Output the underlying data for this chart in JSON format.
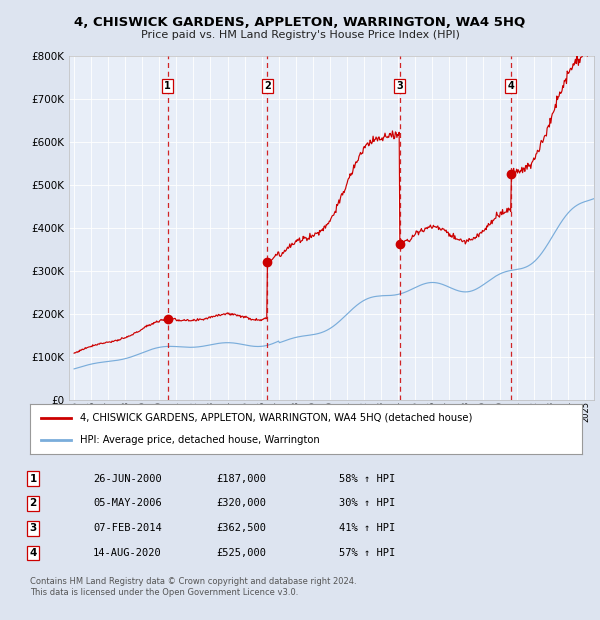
{
  "title1": "4, CHISWICK GARDENS, APPLETON, WARRINGTON, WA4 5HQ",
  "title2": "Price paid vs. HM Land Registry's House Price Index (HPI)",
  "background_color": "#dde4f0",
  "plot_bg": "#e8eef8",
  "ylim": [
    0,
    800000
  ],
  "yticks": [
    0,
    100000,
    200000,
    300000,
    400000,
    500000,
    600000,
    700000,
    800000
  ],
  "ytick_labels": [
    "£0",
    "£100K",
    "£200K",
    "£300K",
    "£400K",
    "£500K",
    "£600K",
    "£700K",
    "£800K"
  ],
  "sales": [
    {
      "label": "1",
      "date_num": 2000.49,
      "price": 187000
    },
    {
      "label": "2",
      "date_num": 2006.34,
      "price": 320000
    },
    {
      "label": "3",
      "date_num": 2014.1,
      "price": 362500
    },
    {
      "label": "4",
      "date_num": 2020.62,
      "price": 525000
    }
  ],
  "legend_entry1": "4, CHISWICK GARDENS, APPLETON, WARRINGTON, WA4 5HQ (detached house)",
  "legend_entry2": "HPI: Average price, detached house, Warrington",
  "red_line_color": "#cc0000",
  "blue_line_color": "#7aaddb",
  "vline_color": "#cc0000",
  "marker_color": "#cc0000",
  "table_rows": [
    {
      "num": "1",
      "date": "26-JUN-2000",
      "price": "£187,000",
      "hpi": "58% ↑ HPI"
    },
    {
      "num": "2",
      "date": "05-MAY-2006",
      "price": "£320,000",
      "hpi": "30% ↑ HPI"
    },
    {
      "num": "3",
      "date": "07-FEB-2014",
      "price": "£362,500",
      "hpi": "41% ↑ HPI"
    },
    {
      "num": "4",
      "date": "14-AUG-2020",
      "price": "£525,000",
      "hpi": "57% ↑ HPI"
    }
  ],
  "footer_line1": "Contains HM Land Registry data © Crown copyright and database right 2024.",
  "footer_line2": "This data is licensed under the Open Government Licence v3.0."
}
